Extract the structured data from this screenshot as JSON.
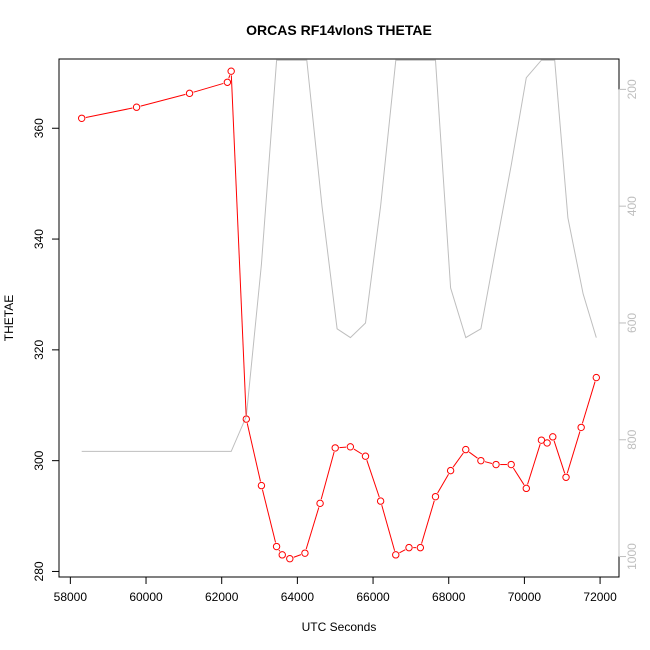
{
  "chart_data": {
    "type": "line",
    "title": "ORCAS RF14vlonS THETAE",
    "xlabel": "UTC Seconds",
    "ylabel": "THETAE",
    "xlim": [
      57700,
      72500
    ],
    "ylim": [
      279,
      372.5
    ],
    "y2lim": [
      1035,
      148
    ],
    "y2_reversed": true,
    "x_ticks": [
      58000,
      60000,
      62000,
      64000,
      66000,
      68000,
      70000,
      72000
    ],
    "y_ticks": [
      280,
      300,
      320,
      340,
      360
    ],
    "y2_ticks": [
      200,
      400,
      600,
      800,
      1000
    ],
    "grid": false,
    "series": [
      {
        "color": "#ff0000",
        "axis": "left",
        "markers": "open-circle",
        "x": [
          58300,
          59750,
          61150,
          62150,
          62250,
          62650,
          63050,
          63450,
          63600,
          63800,
          64200,
          64600,
          65000,
          65400,
          65800,
          66200,
          66600,
          66950,
          67250,
          67650,
          68050,
          68450,
          68850,
          69250,
          69650,
          70050,
          70450,
          70600,
          70750,
          71100,
          71500,
          71900
        ],
        "y": [
          361.8,
          363.8,
          366.3,
          368.3,
          370.3,
          307.5,
          295.5,
          284.5,
          283.0,
          282.3,
          283.3,
          292.3,
          302.3,
          302.5,
          300.8,
          292.7,
          283.0,
          284.3,
          284.3,
          293.5,
          298.2,
          302.0,
          300.0,
          299.3,
          299.3,
          295.0,
          303.7,
          303.2,
          304.3,
          297.0,
          306.0,
          315.0
        ]
      },
      {
        "color": "#bebebe",
        "axis": "right",
        "markers": "none",
        "x": [
          58300,
          62250,
          62650,
          63050,
          63450,
          63650,
          64250,
          64650,
          65050,
          65400,
          65800,
          66200,
          66600,
          67050,
          67450,
          67650,
          68050,
          68450,
          68850,
          69250,
          69650,
          70050,
          70450,
          70800,
          71150,
          71550,
          71900
        ],
        "y": [
          820,
          820,
          760,
          500,
          150,
          150,
          150,
          400,
          610,
          625,
          600,
          400,
          150,
          150,
          150,
          150,
          540,
          625,
          610,
          470,
          330,
          180,
          150,
          150,
          420,
          550,
          625
        ]
      }
    ]
  }
}
